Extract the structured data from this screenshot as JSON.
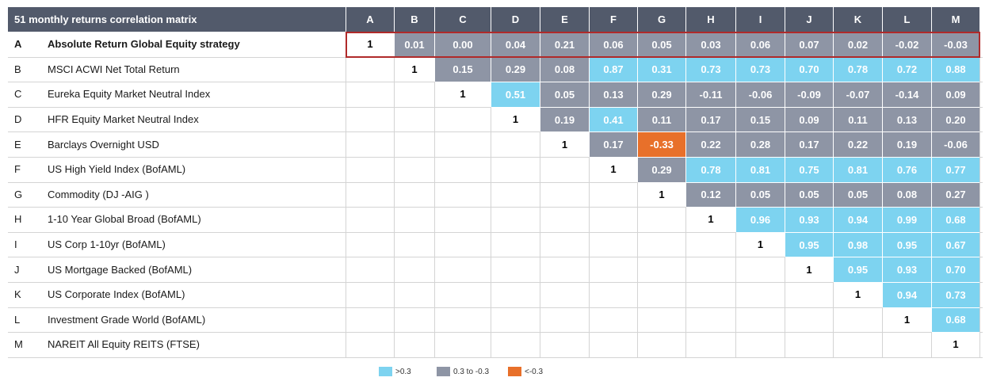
{
  "chart_data": {
    "type": "table",
    "title": "51 monthly returns correlation matrix",
    "columns": [
      "A",
      "B",
      "C",
      "D",
      "E",
      "F",
      "G",
      "H",
      "I",
      "J",
      "K",
      "L",
      "M"
    ],
    "rows": [
      {
        "letter": "A",
        "name": "Absolute Return Global Equity strategy",
        "values": [
          "1",
          "0.01",
          "0.00",
          "0.04",
          "0.21",
          "0.06",
          "0.05",
          "0.03",
          "0.06",
          "0.07",
          "0.02",
          "-0.02",
          "-0.03"
        ]
      },
      {
        "letter": "B",
        "name": "MSCI ACWI Net Total Return",
        "values": [
          "",
          "1",
          "0.15",
          "0.29",
          "0.08",
          "0.87",
          "0.31",
          "0.73",
          "0.73",
          "0.70",
          "0.78",
          "0.72",
          "0.88"
        ]
      },
      {
        "letter": "C",
        "name": "Eureka Equity Market Neutral Index",
        "values": [
          "",
          "",
          "1",
          "0.51",
          "0.05",
          "0.13",
          "0.29",
          "-0.11",
          "-0.06",
          "-0.09",
          "-0.07",
          "-0.14",
          "0.09"
        ]
      },
      {
        "letter": "D",
        "name": "HFR Equity Market Neutral Index",
        "values": [
          "",
          "",
          "",
          "1",
          "0.19",
          "0.41",
          "0.11",
          "0.17",
          "0.15",
          "0.09",
          "0.11",
          "0.13",
          "0.20"
        ]
      },
      {
        "letter": "E",
        "name": "Barclays Overnight USD",
        "values": [
          "",
          "",
          "",
          "",
          "1",
          "0.17",
          "-0.33",
          "0.22",
          "0.28",
          "0.17",
          "0.22",
          "0.19",
          "-0.06"
        ]
      },
      {
        "letter": "F",
        "name": "US High Yield Index (BofAML)",
        "values": [
          "",
          "",
          "",
          "",
          "",
          "1",
          "0.29",
          "0.78",
          "0.81",
          "0.75",
          "0.81",
          "0.76",
          "0.77"
        ]
      },
      {
        "letter": "G",
        "name": "Commodity (DJ -AIG )",
        "values": [
          "",
          "",
          "",
          "",
          "",
          "",
          "1",
          "0.12",
          "0.05",
          "0.05",
          "0.05",
          "0.08",
          "0.27"
        ]
      },
      {
        "letter": "H",
        "name": "1-10 Year Global Broad (BofAML)",
        "values": [
          "",
          "",
          "",
          "",
          "",
          "",
          "",
          "1",
          "0.96",
          "0.93",
          "0.94",
          "0.99",
          "0.68"
        ]
      },
      {
        "letter": "I",
        "name": "US Corp 1-10yr (BofAML)",
        "values": [
          "",
          "",
          "",
          "",
          "",
          "",
          "",
          "",
          "1",
          "0.95",
          "0.98",
          "0.95",
          "0.67"
        ]
      },
      {
        "letter": "J",
        "name": "US Mortgage Backed (BofAML)",
        "values": [
          "",
          "",
          "",
          "",
          "",
          "",
          "",
          "",
          "",
          "1",
          "0.95",
          "0.93",
          "0.70"
        ]
      },
      {
        "letter": "K",
        "name": "US Corporate Index (BofAML)",
        "values": [
          "",
          "",
          "",
          "",
          "",
          "",
          "",
          "",
          "",
          "",
          "1",
          "0.94",
          "0.73"
        ]
      },
      {
        "letter": "L",
        "name": "Investment Grade World (BofAML)",
        "values": [
          "",
          "",
          "",
          "",
          "",
          "",
          "",
          "",
          "",
          "",
          "",
          "1",
          "0.68"
        ]
      },
      {
        "letter": "M",
        "name": "NAREIT All Equity REITS (FTSE)",
        "values": [
          "",
          "",
          "",
          "",
          "",
          "",
          "",
          "",
          "",
          "",
          "",
          "",
          "1"
        ]
      }
    ],
    "highlighted_row": "A",
    "legend": [
      {
        "label": ">0.3",
        "color": "#7dd3f0"
      },
      {
        "label": "0.3 to -0.3",
        "color": "#8e95a5"
      },
      {
        "label": "<-0.3",
        "color": "#e8702a"
      }
    ],
    "colors": {
      "header": "#525a6b",
      "high": "#7dd3f0",
      "mid": "#8e95a5",
      "low": "#e8702a",
      "highlight_border": "#b02a2a"
    }
  }
}
